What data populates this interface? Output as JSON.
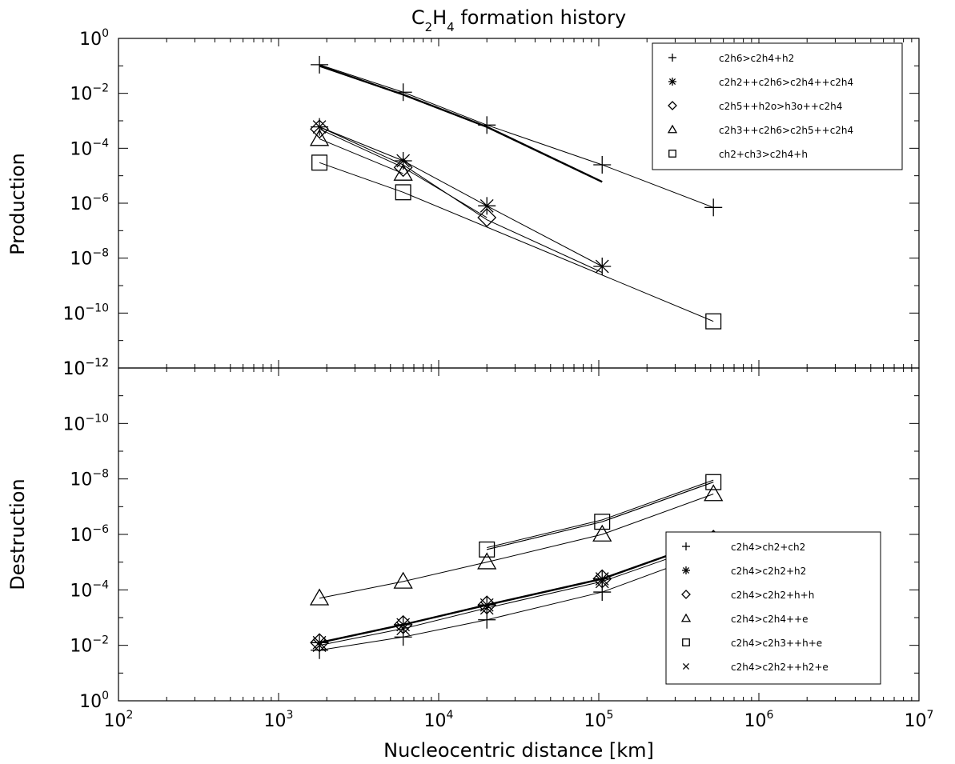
{
  "chart_data": [
    {
      "type": "line",
      "title": "C2H4 formation history",
      "title_main": "C",
      "title_sub1": "2",
      "title_mid": "H",
      "title_sub2": "4",
      "title_tail": " formation history",
      "xlabel": "",
      "ylabel": "Production",
      "xscale": "log",
      "yscale": "log",
      "xlim": [
        100,
        10000000
      ],
      "ylim": [
        1e-12,
        1
      ],
      "y_inverted": false,
      "x_ticks": [],
      "y_ticks": [
        {
          "base": "10",
          "exp": "0",
          "value": 1
        },
        {
          "base": "10",
          "exp": "−2",
          "value": 0.01
        },
        {
          "base": "10",
          "exp": "−4",
          "value": 0.0001
        },
        {
          "base": "10",
          "exp": "−6",
          "value": 1e-06
        },
        {
          "base": "10",
          "exp": "−8",
          "value": 1e-08
        },
        {
          "base": "10",
          "exp": "−10",
          "value": 1e-10
        },
        {
          "base": "10",
          "exp": "−12",
          "value": 1e-12
        }
      ],
      "legend_position": "top-right",
      "series": [
        {
          "name": "c2h6>c2h4+h2",
          "marker": "plus",
          "x": [
            1800,
            6000,
            20000,
            105000,
            520000
          ],
          "y": [
            0.11,
            0.011,
            0.0007,
            2.5e-05,
            7e-07
          ]
        },
        {
          "name": "c2h2++c2h6>c2h4++c2h4",
          "marker": "asterisk",
          "x": [
            1800,
            6000,
            20000,
            105000
          ],
          "y": [
            0.0006,
            3.5e-05,
            8e-07,
            5e-09
          ]
        },
        {
          "name": "c2h5++h2o>h3o++c2h4",
          "marker": "diamond",
          "x": [
            1800,
            6000,
            20000
          ],
          "y": [
            0.0005,
            2e-05,
            3e-07
          ]
        },
        {
          "name": "c2h3++c2h6>c2h5++c2h4",
          "marker": "triangle",
          "x": [
            1800,
            6000
          ],
          "y": [
            0.00022,
            1.2e-05
          ]
        },
        {
          "name": "ch2+ch3>c2h4+h",
          "marker": "square",
          "x": [
            1800,
            6000,
            520000
          ],
          "y": [
            3e-05,
            2.5e-06,
            5e-11
          ]
        }
      ],
      "extra_lines": [
        {
          "x": [
            1800,
            6000,
            20000,
            105000
          ],
          "y": [
            0.1,
            0.009,
            0.0006,
            6e-06
          ],
          "width": 2.4
        },
        {
          "x": [
            1800,
            6000,
            20000,
            105000
          ],
          "y": [
            0.0006,
            2.5e-05,
            2.5e-07,
            3e-09
          ],
          "width": 1
        }
      ]
    },
    {
      "type": "line",
      "xlabel": "Nucleocentric distance [km]",
      "ylabel": "Destruction",
      "xscale": "log",
      "yscale": "log",
      "xlim": [
        100,
        10000000
      ],
      "ylim": [
        1e-12,
        1
      ],
      "y_inverted": true,
      "x_ticks": [
        {
          "base": "10",
          "exp": "2",
          "value": 100
        },
        {
          "base": "10",
          "exp": "3",
          "value": 1000
        },
        {
          "base": "10",
          "exp": "4",
          "value": 10000
        },
        {
          "base": "10",
          "exp": "5",
          "value": 100000
        },
        {
          "base": "10",
          "exp": "6",
          "value": 1000000
        },
        {
          "base": "10",
          "exp": "7",
          "value": 10000000
        }
      ],
      "y_ticks": [
        {
          "base": "10",
          "exp": "−12",
          "value": 1e-12
        },
        {
          "base": "10",
          "exp": "−10",
          "value": 1e-10
        },
        {
          "base": "10",
          "exp": "−8",
          "value": 1e-08
        },
        {
          "base": "10",
          "exp": "−6",
          "value": 1e-06
        },
        {
          "base": "10",
          "exp": "−4",
          "value": 0.0001
        },
        {
          "base": "10",
          "exp": "−2",
          "value": 0.01
        },
        {
          "base": "10",
          "exp": "0",
          "value": 1
        }
      ],
      "legend_position": "bottom-right",
      "series": [
        {
          "name": "c2h4>ch2+ch2",
          "marker": "plus",
          "x": [
            1800,
            6000,
            20000,
            105000,
            520000
          ],
          "y": [
            0.015,
            0.005,
            0.0012,
            0.00012,
            4e-06
          ]
        },
        {
          "name": "c2h4>c2h2+h2",
          "marker": "asterisk",
          "x": [
            1800,
            6000,
            20000,
            105000,
            520000
          ],
          "y": [
            0.008,
            0.0018,
            0.00035,
            4e-05,
            1.5e-06
          ]
        },
        {
          "name": "c2h4>c2h2+h+h",
          "marker": "diamond",
          "x": [
            1800,
            6000,
            20000,
            105000,
            520000
          ],
          "y": [
            0.008,
            0.0018,
            0.00035,
            4e-05,
            1.5e-06
          ]
        },
        {
          "name": "c2h4>c2h4++e",
          "marker": "triangle",
          "x": [
            1800,
            6000,
            20000,
            105000,
            520000
          ],
          "y": [
            0.0002,
            5e-05,
            1e-05,
            1e-06,
            3.5e-08
          ]
        },
        {
          "name": "c2h4>c2h3++h+e",
          "marker": "square",
          "x": [
            20000,
            105000,
            520000
          ],
          "y": [
            3.5e-06,
            3.5e-07,
            1.3e-08
          ]
        },
        {
          "name": "c2h4>c2h2++h2+e",
          "marker": "x",
          "x": [
            1800,
            6000,
            20000,
            105000,
            520000
          ],
          "y": [
            0.01,
            0.0025,
            0.00045,
            5e-05,
            2e-06
          ]
        }
      ],
      "extra_lines": [
        {
          "x": [
            1800,
            6000,
            20000,
            105000,
            520000
          ],
          "y": [
            0.008,
            0.0018,
            0.00035,
            4e-05,
            1.5e-06
          ],
          "width": 2.4
        },
        {
          "x": [
            20000,
            105000,
            520000
          ],
          "y": [
            3.5e-06,
            3.5e-07,
            1.3e-08
          ],
          "width": 1
        },
        {
          "x": [
            20000,
            105000,
            520000
          ],
          "y": [
            3e-06,
            3e-07,
            1.1e-08
          ],
          "width": 1
        }
      ]
    }
  ]
}
